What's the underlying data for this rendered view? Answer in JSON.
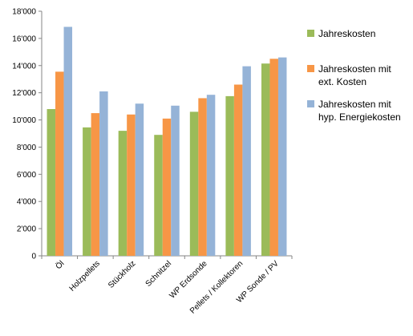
{
  "chart_data": {
    "type": "bar",
    "categories": [
      "Öl",
      "Holzpellets",
      "Stückholz",
      "Schnitzel",
      "WP Erdsonde",
      "Pellets / Kollektoren",
      "WP Sonde / PV"
    ],
    "series": [
      {
        "name": "Jahreskosten",
        "name_lines": [
          "Jahreskosten"
        ],
        "color": "#9BBB59",
        "values": [
          10800,
          9450,
          9200,
          8900,
          10600,
          11750,
          14150
        ]
      },
      {
        "name": "Jahreskosten mit ext. Kosten",
        "name_lines": [
          "Jahreskosten mit",
          "ext. Kosten"
        ],
        "color": "#F79646",
        "values": [
          13550,
          10500,
          10400,
          10100,
          11600,
          12600,
          14500
        ]
      },
      {
        "name": "Jahreskosten mit hyp. Energiekosten",
        "name_lines": [
          "Jahreskosten mit",
          "hyp. Energiekosten"
        ],
        "color": "#95B3D7",
        "values": [
          16850,
          12100,
          11200,
          11050,
          11850,
          13950,
          14600
        ]
      }
    ],
    "ylim": [
      0,
      18000
    ],
    "yticks": [
      0,
      2000,
      4000,
      6000,
      8000,
      10000,
      12000,
      14000,
      16000,
      18000
    ],
    "ytick_labels": [
      "0",
      "2'000",
      "4'000",
      "6'000",
      "8'000",
      "10'000",
      "12'000",
      "14'000",
      "16'000",
      "18'000"
    ],
    "title": "",
    "xlabel": "",
    "ylabel": "",
    "grid": false,
    "legend_position": "right"
  }
}
